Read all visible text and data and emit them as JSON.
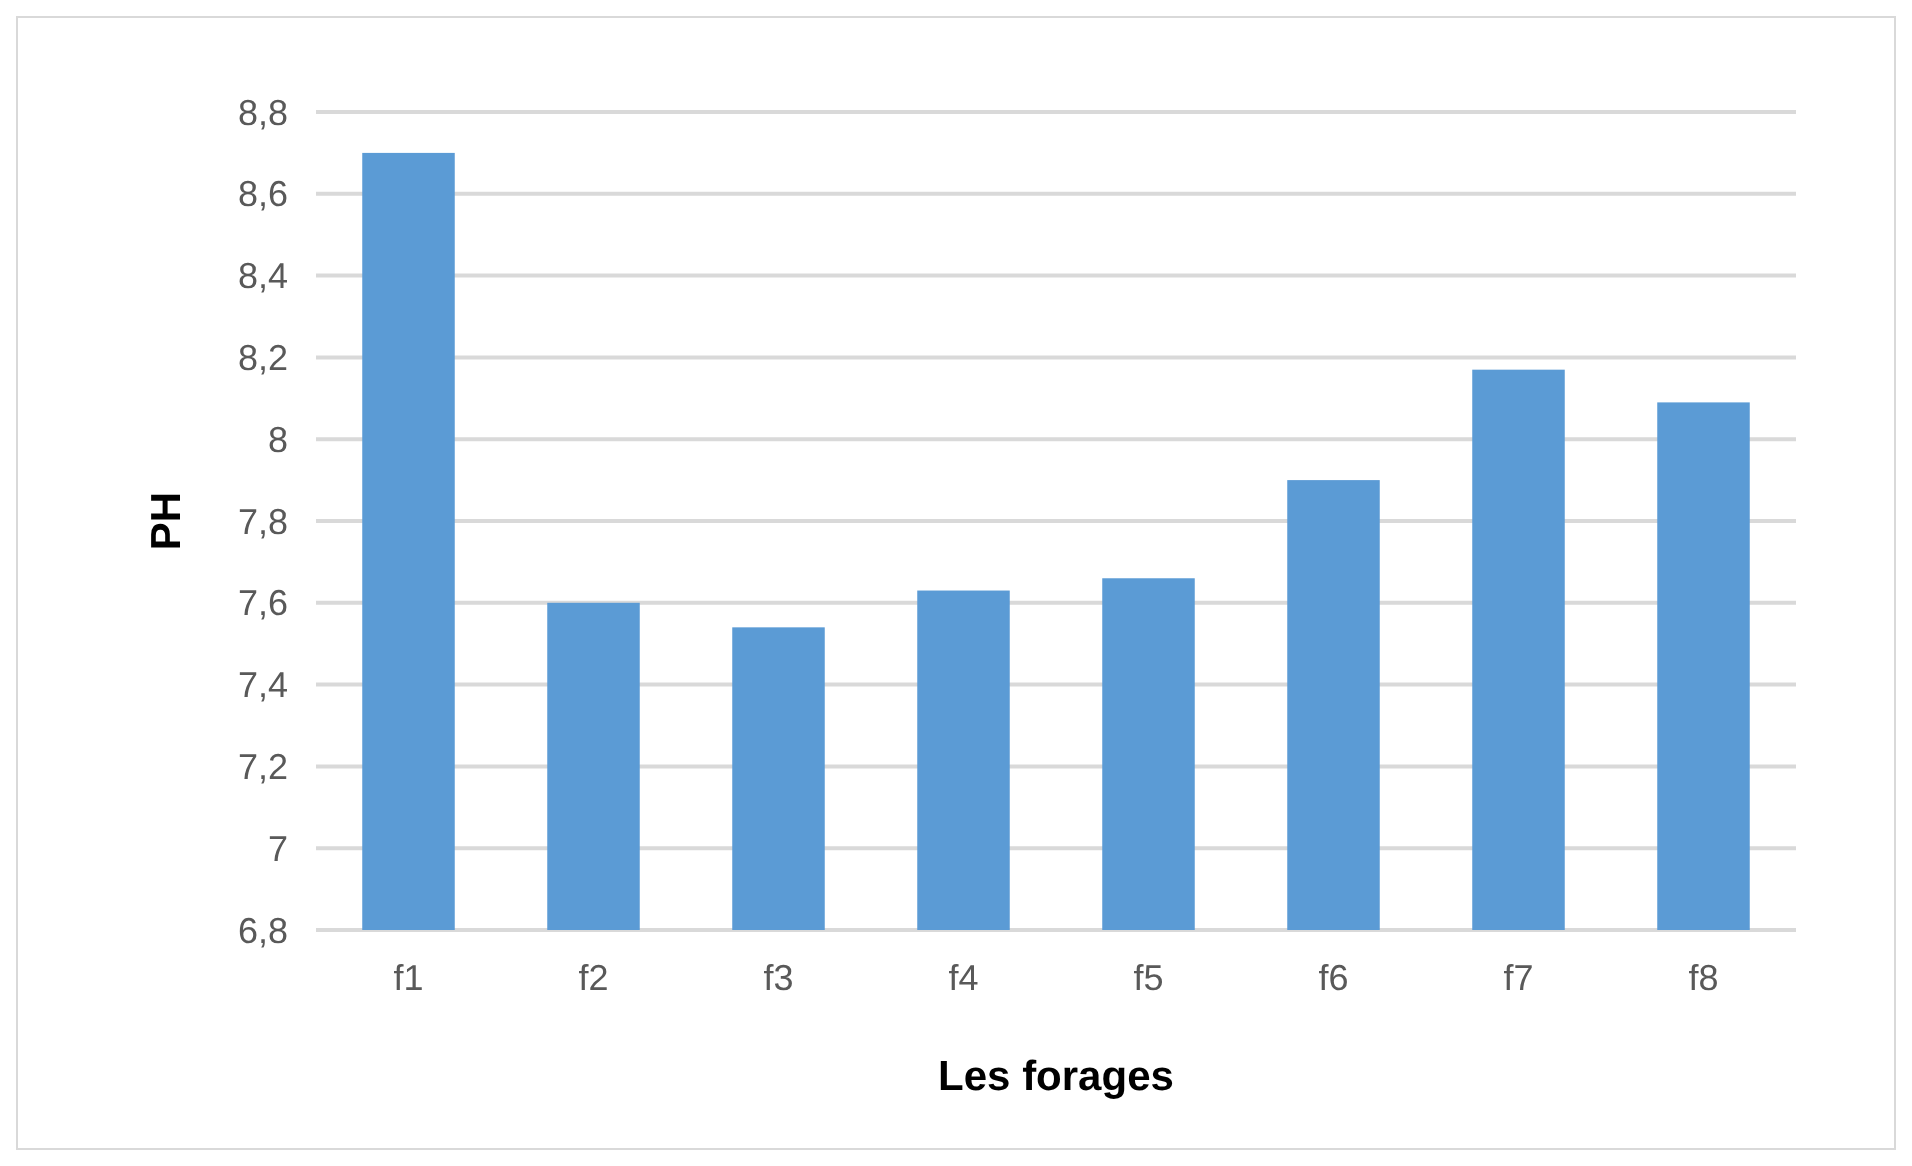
{
  "chart_data": {
    "type": "bar",
    "xlabel": "Les forages",
    "ylabel": "PH",
    "categories": [
      "f1",
      "f2",
      "f3",
      "f4",
      "f5",
      "f6",
      "f7",
      "f8"
    ],
    "values": [
      8.7,
      7.6,
      7.54,
      7.63,
      7.66,
      7.9,
      8.17,
      8.09
    ],
    "color": "#5b9bd5",
    "ylim": [
      6.8,
      8.8
    ],
    "yticks": [
      {
        "value": 6.8,
        "label": "6,8"
      },
      {
        "value": 7,
        "label": "7"
      },
      {
        "value": 7.2,
        "label": "7,2"
      },
      {
        "value": 7.4,
        "label": "7,4"
      },
      {
        "value": 7.6,
        "label": "7,6"
      },
      {
        "value": 7.8,
        "label": "7,8"
      },
      {
        "value": 8,
        "label": "8"
      },
      {
        "value": 8.2,
        "label": "8,2"
      },
      {
        "value": 8.4,
        "label": "8,4"
      },
      {
        "value": 8.6,
        "label": "8,6"
      },
      {
        "value": 8.8,
        "label": "8,8"
      }
    ],
    "grid": "y"
  }
}
